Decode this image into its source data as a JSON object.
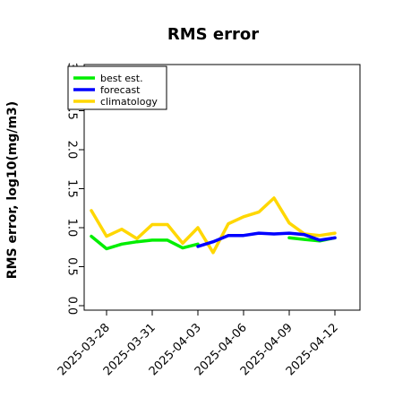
{
  "chart_data": {
    "type": "line",
    "title": "RMS error",
    "xlabel": "",
    "ylabel": "RMS error, log10(mg/m3)",
    "ylim": [
      0.0,
      3.0
    ],
    "y_ticks": [
      "0.0",
      "0.5",
      "1.0",
      "1.5",
      "2.0",
      "2.5",
      "3.0"
    ],
    "x": [
      "2025-03-27",
      "2025-03-28",
      "2025-03-29",
      "2025-03-30",
      "2025-03-31",
      "2025-04-01",
      "2025-04-02",
      "2025-04-03",
      "2025-04-04",
      "2025-04-05",
      "2025-04-06",
      "2025-04-07",
      "2025-04-08",
      "2025-04-09",
      "2025-04-10",
      "2025-04-11",
      "2025-04-12"
    ],
    "x_tick_labels": [
      {
        "label": "2025-03-28",
        "color": "#000000"
      },
      {
        "label": "2025-03-31",
        "color": "#000000"
      },
      {
        "label": "2025-04-03",
        "color": "#228B22"
      },
      {
        "label": "2025-04-06",
        "color": "#000000"
      },
      {
        "label": "2025-04-09",
        "color": "#000000"
      },
      {
        "label": "2025-04-12",
        "color": "#000000"
      }
    ],
    "series": [
      {
        "name": "best est.",
        "color": "#00ee00",
        "values": [
          0.89,
          0.73,
          0.79,
          0.82,
          0.84,
          0.84,
          0.74,
          0.79,
          null,
          null,
          null,
          null,
          null,
          0.87,
          0.85,
          0.83,
          0.87
        ]
      },
      {
        "name": "forecast",
        "color": "#0000ff",
        "values": [
          null,
          null,
          null,
          null,
          null,
          null,
          null,
          0.76,
          0.82,
          0.9,
          0.9,
          0.93,
          0.92,
          0.93,
          0.91,
          0.84,
          0.87
        ]
      },
      {
        "name": "climatology",
        "color": "#ffd700",
        "values": [
          1.22,
          0.89,
          0.98,
          0.86,
          1.04,
          1.04,
          0.8,
          1.0,
          0.68,
          1.05,
          1.14,
          1.2,
          1.38,
          1.06,
          0.92,
          0.9,
          0.93
        ]
      }
    ],
    "legend": "top-left"
  }
}
